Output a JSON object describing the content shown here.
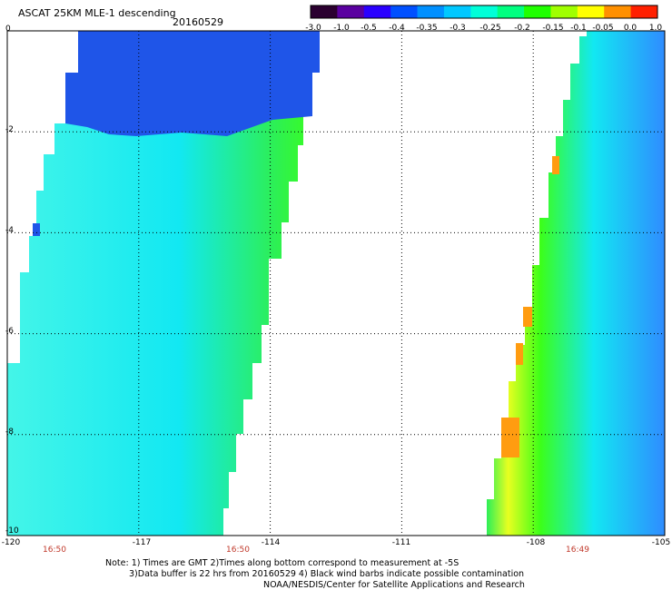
{
  "header": {
    "title": "ASCAT 25KM MLE-1 descending",
    "date": "20160529"
  },
  "colorbar": {
    "labels": [
      "-3.0",
      "-1.0",
      "-0.5",
      "-0.4",
      "-0.35",
      "-0.3",
      "-0.25",
      "-0.2",
      "-0.15",
      "-0.1",
      "-0.05",
      "0.0",
      "1.0"
    ],
    "colors": [
      "#2b0030",
      "#5a00a0",
      "#2a00ff",
      "#0050ff",
      "#0090ff",
      "#00c8ff",
      "#00ffd8",
      "#00ff80",
      "#20ff00",
      "#a0ff00",
      "#ffff00",
      "#ff9000",
      "#ff2000"
    ]
  },
  "map": {
    "lat_labels": [
      "0",
      "-2",
      "-4",
      "-6",
      "-8",
      "-10"
    ],
    "lon_labels": [
      "-120",
      "-117",
      "-114",
      "-111",
      "-108",
      "-105"
    ],
    "pass_times": [
      "16:50",
      "16:50",
      "16:49"
    ],
    "swath_colors": {
      "blue": "#1f55e8",
      "blue_light": "#2f8cff",
      "cyan": "#12e8f2",
      "cyan_light": "#44f5e8",
      "green": "#2cef58",
      "green_bright": "#3cff18",
      "yellow": "#e8ff20",
      "orange": "#ff9c10"
    }
  },
  "notes": {
    "line1": "Note: 1) Times are GMT 2)Times along bottom correspond to measurement at -5S",
    "line2": "3)Data buffer is 22 hrs from 20160529 4) Black wind barbs indicate possible contamination",
    "line3": "NOAA/NESDIS/Center for Satellite Applications and Research"
  }
}
